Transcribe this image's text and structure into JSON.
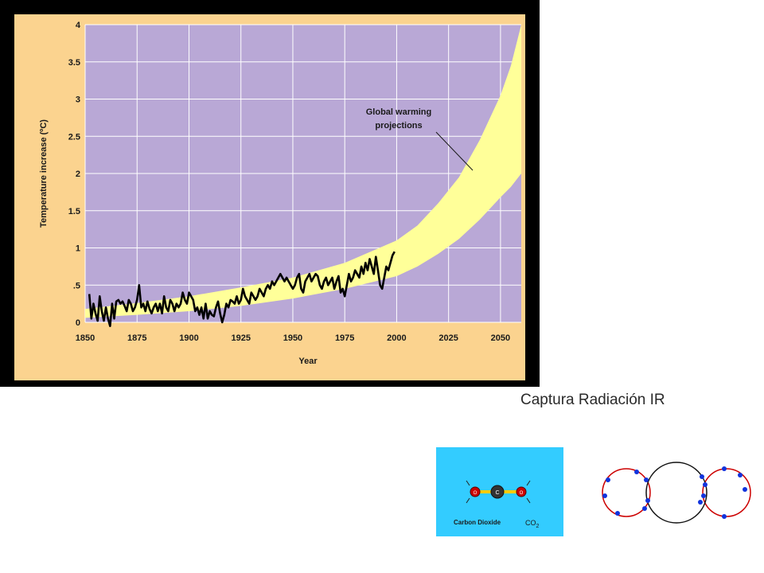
{
  "chart_data": {
    "type": "line",
    "title": "",
    "xlabel": "Year",
    "ylabel": "Temperature increase (ºC)",
    "xlim": [
      1850,
      2060
    ],
    "ylim": [
      0,
      4
    ],
    "x_ticks": [
      "1850",
      "1875",
      "1900",
      "1925",
      "1950",
      "1975",
      "2000",
      "2025",
      "2050"
    ],
    "y_ticks": [
      "0",
      ".5",
      "1",
      "1.5",
      "2",
      "2.5",
      "3",
      "3.5",
      "4"
    ],
    "grid": true,
    "annotation": [
      "Global warming",
      "projections"
    ],
    "colors": {
      "plot_bg": "#b9a8d6",
      "outer_bg": "#fbd38f",
      "band": "#ffff99",
      "line": "#000000",
      "grid": "#ffffff"
    },
    "series": [
      {
        "kind": "observed",
        "x": [
          1852,
          1853,
          1854,
          1855,
          1856,
          1857,
          1858,
          1859,
          1860,
          1861,
          1862,
          1863,
          1864,
          1865,
          1866,
          1867,
          1868,
          1869,
          1870,
          1871,
          1872,
          1873,
          1874,
          1875,
          1876,
          1877,
          1878,
          1879,
          1880,
          1881,
          1882,
          1883,
          1884,
          1885,
          1886,
          1887,
          1888,
          1889,
          1890,
          1891,
          1892,
          1893,
          1894,
          1895,
          1896,
          1897,
          1898,
          1899,
          1900,
          1901,
          1902,
          1903,
          1904,
          1905,
          1906,
          1907,
          1908,
          1909,
          1910,
          1911,
          1912,
          1913,
          1914,
          1915,
          1916,
          1917,
          1918,
          1919,
          1920,
          1921,
          1922,
          1923,
          1924,
          1925,
          1926,
          1927,
          1928,
          1929,
          1930,
          1931,
          1932,
          1933,
          1934,
          1935,
          1936,
          1937,
          1938,
          1939,
          1940,
          1941,
          1942,
          1943,
          1944,
          1945,
          1946,
          1947,
          1948,
          1949,
          1950,
          1951,
          1952,
          1953,
          1954,
          1955,
          1956,
          1957,
          1958,
          1959,
          1960,
          1961,
          1962,
          1963,
          1964,
          1965,
          1966,
          1967,
          1968,
          1969,
          1970,
          1971,
          1972,
          1973,
          1974,
          1975,
          1976,
          1977,
          1978,
          1979,
          1980,
          1981,
          1982,
          1983,
          1984,
          1985,
          1986,
          1987,
          1988,
          1989,
          1990,
          1991,
          1992,
          1993,
          1994,
          1995,
          1996,
          1997,
          1998,
          1999
        ],
        "y": [
          0.38,
          0.05,
          0.25,
          0.12,
          0.02,
          0.35,
          0.15,
          0.02,
          0.2,
          0.05,
          -0.05,
          0.25,
          0.05,
          0.28,
          0.3,
          0.25,
          0.28,
          0.22,
          0.15,
          0.3,
          0.25,
          0.15,
          0.2,
          0.3,
          0.5,
          0.2,
          0.25,
          0.15,
          0.28,
          0.18,
          0.12,
          0.2,
          0.25,
          0.15,
          0.25,
          0.12,
          0.35,
          0.2,
          0.15,
          0.3,
          0.25,
          0.15,
          0.25,
          0.2,
          0.25,
          0.4,
          0.3,
          0.25,
          0.4,
          0.35,
          0.3,
          0.15,
          0.2,
          0.1,
          0.2,
          0.05,
          0.25,
          0.05,
          0.15,
          0.1,
          0.08,
          0.2,
          0.28,
          0.12,
          0.0,
          0.1,
          0.25,
          0.2,
          0.3,
          0.28,
          0.25,
          0.35,
          0.25,
          0.3,
          0.45,
          0.35,
          0.3,
          0.25,
          0.4,
          0.35,
          0.3,
          0.35,
          0.45,
          0.4,
          0.35,
          0.45,
          0.5,
          0.45,
          0.55,
          0.5,
          0.55,
          0.6,
          0.65,
          0.6,
          0.55,
          0.6,
          0.55,
          0.5,
          0.45,
          0.5,
          0.6,
          0.65,
          0.45,
          0.4,
          0.55,
          0.6,
          0.65,
          0.55,
          0.6,
          0.65,
          0.62,
          0.5,
          0.45,
          0.55,
          0.6,
          0.5,
          0.55,
          0.6,
          0.45,
          0.55,
          0.62,
          0.4,
          0.45,
          0.35,
          0.5,
          0.65,
          0.55,
          0.6,
          0.7,
          0.65,
          0.6,
          0.75,
          0.65,
          0.8,
          0.7,
          0.85,
          0.75,
          0.65,
          0.88,
          0.7,
          0.5,
          0.45,
          0.6,
          0.75,
          0.7,
          0.8,
          0.9,
          0.95
        ]
      },
      {
        "kind": "projection_upper",
        "x": [
          1850,
          1875,
          1900,
          1925,
          1950,
          1975,
          2000,
          2010,
          2020,
          2030,
          2040,
          2050,
          2055,
          2060
        ],
        "y": [
          0.18,
          0.26,
          0.35,
          0.47,
          0.6,
          0.8,
          1.1,
          1.3,
          1.6,
          1.95,
          2.45,
          3.05,
          3.45,
          4.0
        ]
      },
      {
        "kind": "projection_lower",
        "x": [
          1850,
          1875,
          1900,
          1925,
          1950,
          1975,
          2000,
          2010,
          2020,
          2030,
          2040,
          2050,
          2055,
          2060
        ],
        "y": [
          0.06,
          0.1,
          0.15,
          0.22,
          0.32,
          0.45,
          0.62,
          0.75,
          0.92,
          1.12,
          1.38,
          1.68,
          1.82,
          2.0
        ]
      }
    ]
  },
  "caption": "Captura Radiación IR",
  "co2": {
    "name": "Carbon Dioxide",
    "formula": "CO",
    "subscript": "2",
    "atom_o": "O",
    "atom_c": "C"
  }
}
